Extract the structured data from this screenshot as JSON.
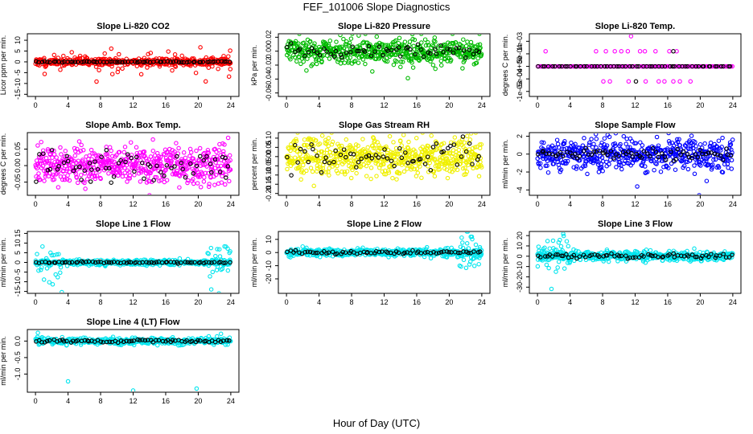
{
  "figure": {
    "title": "FEF_101006  Slope Diagnostics",
    "xlabel": "Hour of Day (UTC)"
  },
  "chart_data": [
    {
      "type": "scatter",
      "title": "Slope Li-820 CO2",
      "ylabel": "Licor ppm per min.",
      "xlim": [
        -1,
        25
      ],
      "ylim": [
        -16,
        13
      ],
      "xticks": [
        0,
        4,
        8,
        12,
        16,
        20,
        24
      ],
      "yticks": [
        -15,
        -10,
        -5,
        0,
        5,
        10
      ],
      "ytick_labels": [
        "-15",
        "-10",
        "-5",
        "0",
        "5",
        "10"
      ],
      "color": "#ff0000",
      "series": [
        {
          "color": "#ff0000",
          "gen": {
            "x0": 0,
            "x1": 24,
            "n": 420,
            "sd": 0.9,
            "out": 45,
            "outsd": 4,
            "seed": 11
          }
        },
        {
          "color": "#000000",
          "gen": {
            "x0": 0,
            "x1": 24,
            "n": 70,
            "sd": 0.15,
            "out": 0,
            "outsd": 0,
            "seed": 12
          }
        }
      ]
    },
    {
      "type": "scatter",
      "title": "Slope Li-820 Pressure",
      "ylabel": "kPa per min.",
      "xlim": [
        -1,
        25
      ],
      "ylim": [
        -0.065,
        0.025
      ],
      "xticks": [
        0,
        4,
        8,
        12,
        16,
        20,
        24
      ],
      "yticks": [
        -0.06,
        -0.04,
        -0.02,
        0.0,
        0.02
      ],
      "ytick_labels": [
        "-0.06",
        "-0.04",
        "-0.02",
        "0.00",
        "0.02"
      ],
      "color": "#00bb00",
      "series": [
        {
          "color": "#00bb00",
          "gen": {
            "x0": 0,
            "x1": 24,
            "n": 520,
            "sd": 0.009,
            "out": 8,
            "outsd": 0.03,
            "seed": 21
          }
        },
        {
          "color": "#000000",
          "gen": {
            "x0": 0,
            "x1": 24,
            "n": 60,
            "sd": 0.005,
            "out": 0,
            "outsd": 0,
            "seed": 22
          }
        }
      ]
    },
    {
      "type": "scatter",
      "title": "Slope Li-820 Temp.",
      "ylabel": "degrees C per min.",
      "xlim": [
        -1,
        25
      ],
      "ylim": [
        -0.0012,
        0.0013
      ],
      "xticks": [
        0,
        4,
        8,
        12,
        16,
        20,
        24
      ],
      "yticks": [
        -0.001,
        -0.0005,
        0.0,
        0.0005,
        0.001
      ],
      "ytick_labels": [
        "-1e-03",
        "-5e-04",
        "0e+00",
        "5e-04",
        "1e-03"
      ],
      "color": "#ff00ff",
      "series": [
        {
          "color": "#ff00ff",
          "gen": {
            "x0": 0,
            "x1": 24,
            "n": 140,
            "sd": 0,
            "out": 0,
            "outsd": 0,
            "seed": 31
          }
        },
        {
          "color": "#ff00ff",
          "pts": [
            [
              1,
              0.0006
            ],
            [
              7.2,
              0.0006
            ],
            [
              8.4,
              0.0006
            ],
            [
              9.5,
              0.0006
            ],
            [
              10.3,
              0.0006
            ],
            [
              11.1,
              0.0006
            ],
            [
              12.6,
              0.0006
            ],
            [
              13.2,
              0.0006
            ],
            [
              14.5,
              0.0006
            ],
            [
              16.2,
              0.0006
            ],
            [
              17.1,
              0.0006
            ],
            [
              8.1,
              -0.0006
            ],
            [
              11.2,
              -0.0006
            ],
            [
              13.3,
              -0.0006
            ],
            [
              14.9,
              -0.0006
            ],
            [
              15.6,
              -0.0006
            ],
            [
              16.7,
              -0.0006
            ],
            [
              17.5,
              -0.0006
            ],
            [
              18.8,
              -0.0006
            ],
            [
              11.5,
              0.0012
            ],
            [
              8.9,
              -0.0006
            ]
          ]
        },
        {
          "color": "#000000",
          "gen": {
            "x0": 0,
            "x1": 24,
            "n": 60,
            "sd": 0,
            "out": 0,
            "outsd": 0,
            "seed": 32
          }
        },
        {
          "color": "#000000",
          "pts": [
            [
              16.7,
              0.0006
            ],
            [
              12.1,
              -0.0006
            ]
          ]
        }
      ]
    },
    {
      "type": "scatter",
      "title": "Slope Amb. Box Temp.",
      "ylabel": "degrees C per min.",
      "xlim": [
        -1,
        25
      ],
      "ylim": [
        -0.09,
        0.1
      ],
      "xticks": [
        0,
        4,
        8,
        12,
        16,
        20,
        24
      ],
      "yticks": [
        -0.05,
        0.0,
        0.05
      ],
      "ytick_labels": [
        "-0.05",
        "0.00",
        "0.05"
      ],
      "color": "#ff00ff",
      "series": [
        {
          "color": "#ff00ff",
          "gen": {
            "x0": 0,
            "x1": 24,
            "n": 560,
            "sd": 0.028,
            "out": 0,
            "outsd": 0,
            "seed": 41
          }
        },
        {
          "color": "#000000",
          "gen": {
            "x0": 0,
            "x1": 24,
            "n": 60,
            "sd": 0.025,
            "out": 3,
            "outsd": 0.05,
            "seed": 42
          }
        }
      ]
    },
    {
      "type": "scatter",
      "title": "Slope Gas Stream RH",
      "ylabel": "percent per min.",
      "xlim": [
        -1,
        25
      ],
      "ylim": [
        -0.21,
        0.13
      ],
      "xticks": [
        0,
        4,
        8,
        12,
        16,
        20,
        24
      ],
      "yticks": [
        -0.2,
        -0.15,
        -0.1,
        -0.05,
        0.0,
        0.05,
        0.1
      ],
      "ytick_labels": [
        "-0.20",
        "-0.15",
        "-0.10",
        "-0.05",
        "0.00",
        "0.05",
        "0.10"
      ],
      "color": "#ffff00",
      "series": [
        {
          "color": "#f0f000",
          "gen": {
            "x0": 0,
            "x1": 24,
            "n": 600,
            "sd": 0.05,
            "out": 4,
            "outsd": 0.1,
            "seed": 51
          }
        },
        {
          "color": "#000000",
          "gen": {
            "x0": 0,
            "x1": 24,
            "n": 60,
            "sd": 0.04,
            "out": 0,
            "outsd": 0,
            "seed": 52
          }
        }
      ]
    },
    {
      "type": "scatter",
      "title": "Slope Sample Flow",
      "ylabel": "ml/min per min.",
      "xlim": [
        -1,
        25
      ],
      "ylim": [
        -4.6,
        2.4
      ],
      "xticks": [
        0,
        4,
        8,
        12,
        16,
        20,
        24
      ],
      "yticks": [
        -4,
        -2,
        0,
        2
      ],
      "ytick_labels": [
        "-4",
        "-2",
        "0",
        "2"
      ],
      "color": "#0000ff",
      "series": [
        {
          "color": "#0000ff",
          "gen": {
            "x0": 0,
            "x1": 24,
            "n": 520,
            "sd": 0.9,
            "out": 8,
            "outsd": 2,
            "seed": 61
          }
        },
        {
          "color": "#000000",
          "gen": {
            "x0": 0,
            "x1": 24,
            "n": 70,
            "sd": 0.3,
            "out": 0,
            "outsd": 0,
            "seed": 62
          }
        }
      ]
    },
    {
      "type": "scatter",
      "title": "Slope Line 1 Flow",
      "ylabel": "ml/min per min.",
      "xlim": [
        -1,
        25
      ],
      "ylim": [
        -16,
        16
      ],
      "xticks": [
        0,
        4,
        8,
        12,
        16,
        20,
        24
      ],
      "yticks": [
        -15,
        -10,
        -5,
        0,
        5,
        10,
        15
      ],
      "ytick_labels": [
        "-15",
        "-10",
        "-5",
        "0",
        "5",
        "10",
        "15"
      ],
      "color": "#00e5ee",
      "series": [
        {
          "color": "#00e5ee",
          "gen": {
            "x0": 0,
            "x1": 24,
            "n": 420,
            "sd": 0.7,
            "out": 0,
            "outsd": 0,
            "seed": 71
          }
        },
        {
          "color": "#00e5ee",
          "gen": {
            "x0": 0,
            "x1": 3.5,
            "n": 25,
            "sd": 6,
            "out": 0,
            "outsd": 0,
            "seed": 73
          }
        },
        {
          "color": "#00e5ee",
          "gen": {
            "x0": 21,
            "x1": 24,
            "n": 25,
            "sd": 6,
            "out": 0,
            "outsd": 0,
            "seed": 74
          }
        },
        {
          "color": "#000000",
          "gen": {
            "x0": 0,
            "x1": 24,
            "n": 70,
            "sd": 0.2,
            "out": 0,
            "outsd": 0,
            "seed": 72
          }
        }
      ]
    },
    {
      "type": "scatter",
      "title": "Slope Line 2 Flow",
      "ylabel": "ml/min per min.",
      "xlim": [
        -1,
        25
      ],
      "ylim": [
        -31,
        16
      ],
      "xticks": [
        0,
        4,
        8,
        12,
        16,
        20,
        24
      ],
      "yticks": [
        -20,
        -10,
        0,
        10
      ],
      "ytick_labels": [
        "-20",
        "-10",
        "0",
        "10"
      ],
      "color": "#00e5ee",
      "series": [
        {
          "color": "#00e5ee",
          "gen": {
            "x0": 0,
            "x1": 24,
            "n": 420,
            "sd": 1.5,
            "out": 0,
            "outsd": 0,
            "seed": 81
          }
        },
        {
          "color": "#00e5ee",
          "gen": {
            "x0": 21,
            "x1": 24,
            "n": 35,
            "sd": 9,
            "out": 0,
            "outsd": 0,
            "seed": 83
          }
        },
        {
          "color": "#000000",
          "gen": {
            "x0": 0,
            "x1": 24,
            "n": 70,
            "sd": 0.6,
            "out": 0,
            "outsd": 0,
            "seed": 82
          }
        }
      ]
    },
    {
      "type": "scatter",
      "title": "Slope Line 3 Flow",
      "ylabel": "ml/min per min.",
      "xlim": [
        -1,
        25
      ],
      "ylim": [
        -36,
        24
      ],
      "xticks": [
        0,
        4,
        8,
        12,
        16,
        20,
        24
      ],
      "yticks": [
        -30,
        -20,
        -10,
        0,
        10,
        20
      ],
      "ytick_labels": [
        "-30",
        "-20",
        "-10",
        "0",
        "10",
        "20"
      ],
      "color": "#00e5ee",
      "series": [
        {
          "color": "#00e5ee",
          "gen": {
            "x0": 0,
            "x1": 24,
            "n": 460,
            "sd": 2.5,
            "out": 0,
            "outsd": 0,
            "seed": 91
          }
        },
        {
          "color": "#00e5ee",
          "gen": {
            "x0": 0,
            "x1": 4,
            "n": 35,
            "sd": 12,
            "out": 0,
            "outsd": 0,
            "seed": 93
          }
        },
        {
          "color": "#000000",
          "gen": {
            "x0": 0,
            "x1": 24,
            "n": 70,
            "sd": 1.2,
            "out": 0,
            "outsd": 0,
            "seed": 92
          }
        }
      ]
    },
    {
      "type": "scatter",
      "title": "Slope Line 4 (LT) Flow",
      "ylabel": "ml/min per min.",
      "xlim": [
        -1,
        25
      ],
      "ylim": [
        -1.55,
        0.35
      ],
      "xticks": [
        0,
        4,
        8,
        12,
        16,
        20,
        24
      ],
      "yticks": [
        -1.0,
        -0.5,
        0.0
      ],
      "ytick_labels": [
        "-1.0",
        "-0.5",
        "0.0"
      ],
      "color": "#00e5ee",
      "series": [
        {
          "color": "#00e5ee",
          "gen": {
            "x0": 0,
            "x1": 24,
            "n": 420,
            "sd": 0.05,
            "out": 0,
            "outsd": 0,
            "seed": 101
          }
        },
        {
          "color": "#00e5ee",
          "pts": [
            [
              0.3,
              0.25
            ],
            [
              4,
              -1.22
            ],
            [
              12,
              -1.5
            ],
            [
              19.8,
              -1.44
            ],
            [
              22.8,
              0.22
            ]
          ]
        },
        {
          "color": "#000000",
          "gen": {
            "x0": 0,
            "x1": 24,
            "n": 70,
            "sd": 0.02,
            "out": 0,
            "outsd": 0,
            "seed": 102
          }
        }
      ]
    }
  ]
}
